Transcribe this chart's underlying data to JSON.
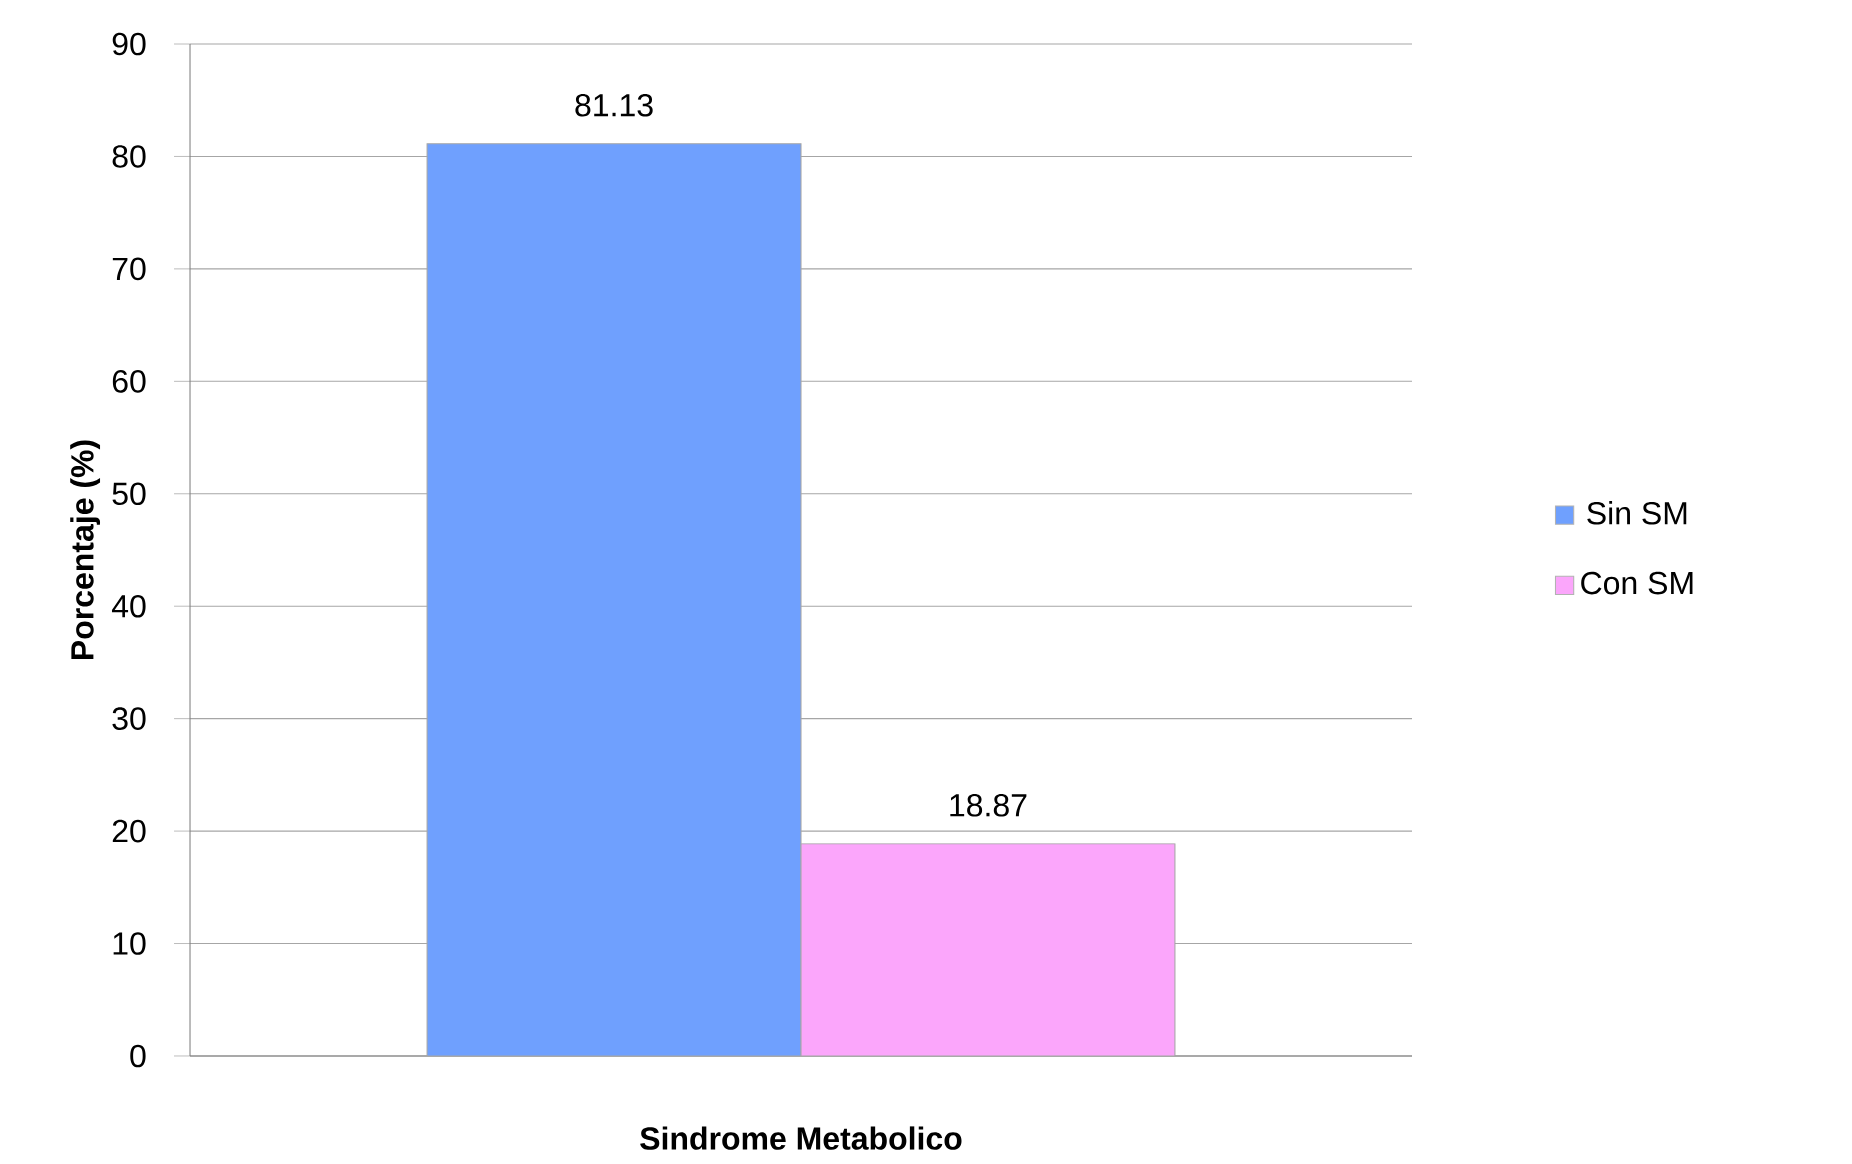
{
  "chart_data": {
    "type": "bar",
    "xlabel": "Sindrome Metabolico",
    "ylabel": "Porcentaje (%)",
    "categories": [
      null
    ],
    "series": [
      {
        "name": "Sin SM",
        "color": "#6fa0fe",
        "values": [
          81.13
        ]
      },
      {
        "name": "Con SM",
        "color": "#fba6fb",
        "values": [
          18.87
        ]
      }
    ],
    "ylim": [
      0,
      90
    ],
    "yticks": [
      0,
      10,
      20,
      30,
      40,
      50,
      60,
      70,
      80,
      90
    ],
    "grid": "y",
    "legend": "right",
    "data_labels": true
  }
}
